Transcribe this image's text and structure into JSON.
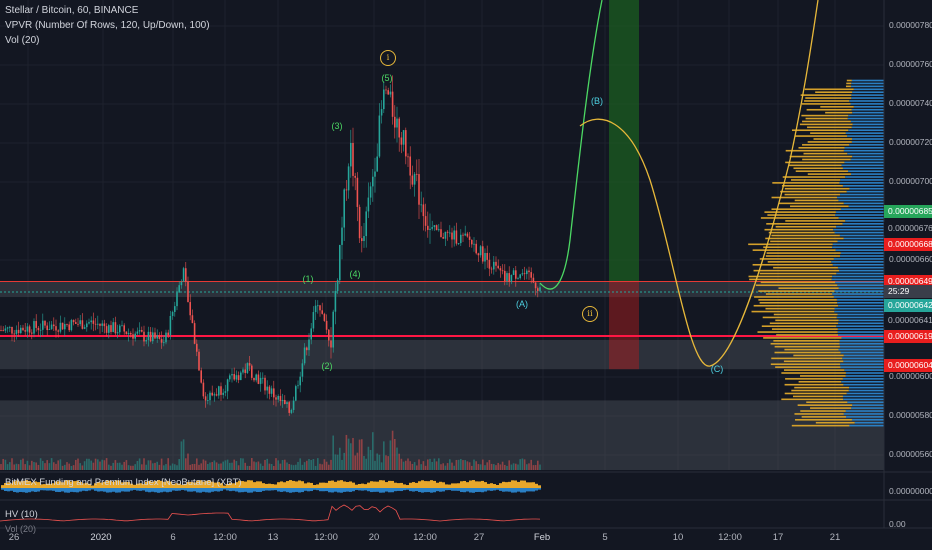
{
  "legend": {
    "title": "Stellar / Bitcoin, 60, BINANCE",
    "vpvr": "VPVR (Number Of Rows, 120, Up/Down, 100)",
    "vol": "Vol (20)",
    "funding": "BitMEX Funding and Premium Index [NeoButane] (XBT)",
    "hv": "HV (10)",
    "vol_bottom": "Vol (20)"
  },
  "price_axis": [
    {
      "label": "0.00000780",
      "value": 780
    },
    {
      "label": "0.00000760",
      "value": 760
    },
    {
      "label": "0.00000740",
      "value": 740
    },
    {
      "label": "0.00000720",
      "value": 720
    },
    {
      "label": "0.00000700",
      "value": 700
    },
    {
      "label": "0.00000660",
      "value": 660
    },
    {
      "label": "0.00000600",
      "value": 600
    },
    {
      "label": "0.00000580",
      "value": 580
    },
    {
      "label": "0.00000560",
      "value": 560
    }
  ],
  "price_tags": [
    {
      "label": "0.00000685",
      "value": 685,
      "bg": "#26a65b",
      "fg": "#ffffff"
    },
    {
      "label": "0.00000676",
      "value": 676,
      "bg": "#131722",
      "fg": "#b2b5be"
    },
    {
      "label": "0.00000668",
      "value": 668,
      "bg": "#e91e1e",
      "fg": "#ffffff"
    },
    {
      "label": "0.00000649",
      "value": 649,
      "bg": "#e91e1e",
      "fg": "#ffffff"
    },
    {
      "label": "25:29",
      "value": 643.6,
      "bg": "#3a3e4a",
      "fg": "#ffffff"
    },
    {
      "label": "0.00000642",
      "value": 636.7,
      "bg": "#26a69a",
      "fg": "#ffffff"
    },
    {
      "label": "0.00000641",
      "value": 629,
      "bg": "#131722",
      "fg": "#b2b5be"
    },
    {
      "label": "0.00000619",
      "value": 621,
      "bg": "#e91e1e",
      "fg": "#ffffff"
    },
    {
      "label": "0.00000604",
      "value": 606,
      "bg": "#e91e1e",
      "fg": "#ffffff"
    }
  ],
  "sub_axis": {
    "funding_label": "0.00000000",
    "hv_label": "0.00"
  },
  "time_axis": [
    {
      "label": "26",
      "pos": 0
    },
    {
      "label": "2020",
      "pos": 1
    },
    {
      "label": "6",
      "pos": 2
    },
    {
      "label": "12:00",
      "pos": 3
    },
    {
      "label": "13",
      "pos": 4
    },
    {
      "label": "12:00",
      "pos": 5
    },
    {
      "label": "20",
      "pos": 6
    },
    {
      "label": "12:00",
      "pos": 7
    },
    {
      "label": "27",
      "pos": 8
    },
    {
      "label": "Feb",
      "pos": 9
    },
    {
      "label": "5",
      "pos": 10
    },
    {
      "label": "10",
      "pos": 11
    },
    {
      "label": "12:00",
      "pos": 12
    },
    {
      "label": "17",
      "pos": 13
    },
    {
      "label": "21",
      "pos": 14
    }
  ],
  "wave_labels": [
    {
      "text": "(1)",
      "color": "#4cd964",
      "x": 308,
      "y": 279
    },
    {
      "text": "(2)",
      "color": "#4cd964",
      "x": 327,
      "y": 366
    },
    {
      "text": "(3)",
      "color": "#4cd964",
      "x": 337,
      "y": 126
    },
    {
      "text": "(4)",
      "color": "#4cd964",
      "x": 355,
      "y": 274
    },
    {
      "text": "(5)",
      "color": "#4cd964",
      "x": 387,
      "y": 78
    },
    {
      "text": "(A)",
      "color": "#4dd0e1",
      "x": 522,
      "y": 304
    },
    {
      "text": "(B)",
      "color": "#4dd0e1",
      "x": 597,
      "y": 101
    },
    {
      "text": "(C)",
      "color": "#4dd0e1",
      "x": 717,
      "y": 369
    }
  ],
  "circle_labels": [
    {
      "text": "i",
      "x": 388,
      "y": 58
    },
    {
      "text": "ii",
      "x": 590,
      "y": 314
    }
  ],
  "chart_data": {
    "type": "candlestick",
    "symbol": "Stellar / Bitcoin",
    "interval": "60",
    "exchange": "BINANCE",
    "ylim": [
      5.5e-06,
      7.9e-06
    ],
    "last_price": 6.42e-06,
    "key_levels": [
      6.85e-06,
      6.76e-06,
      6.68e-06,
      6.49e-06,
      6.42e-06,
      6.41e-06,
      6.19e-06,
      6.04e-06
    ],
    "approx_price_path": [
      {
        "t": "Dec 26",
        "price": 6.24e-06
      },
      {
        "t": "Jan 1",
        "price": 6.28e-06
      },
      {
        "t": "Jan 5",
        "price": 6.18e-06
      },
      {
        "t": "Jan 6",
        "price": 6.55e-06
      },
      {
        "t": "Jan 8",
        "price": 5.88e-06
      },
      {
        "t": "Jan 10",
        "price": 6.05e-06
      },
      {
        "t": "Jan 13",
        "price": 5.82e-06
      },
      {
        "t": "Jan 15",
        "price": 6.4e-06
      },
      {
        "t": "Jan 16",
        "price": 6.15e-06
      },
      {
        "t": "Jan 18",
        "price": 7.2e-06
      },
      {
        "t": "Jan 19",
        "price": 6.65e-06
      },
      {
        "t": "Jan 21",
        "price": 7.48e-06
      },
      {
        "t": "Jan 23",
        "price": 7.18e-06
      },
      {
        "t": "Jan 25",
        "price": 6.75e-06
      },
      {
        "t": "Jan 28",
        "price": 6.7e-06
      },
      {
        "t": "Jan 30",
        "price": 6.5e-06
      },
      {
        "t": "Jan 31",
        "price": 6.54e-06
      },
      {
        "t": "Feb 1",
        "price": 6.46e-06
      }
    ],
    "projection_green": {
      "from": 6.46e-06,
      "to": 7.85e-06
    },
    "projection_orange": {
      "B": 7.3e-06,
      "C": 6.03e-06,
      "end": 7.9e-06
    }
  }
}
